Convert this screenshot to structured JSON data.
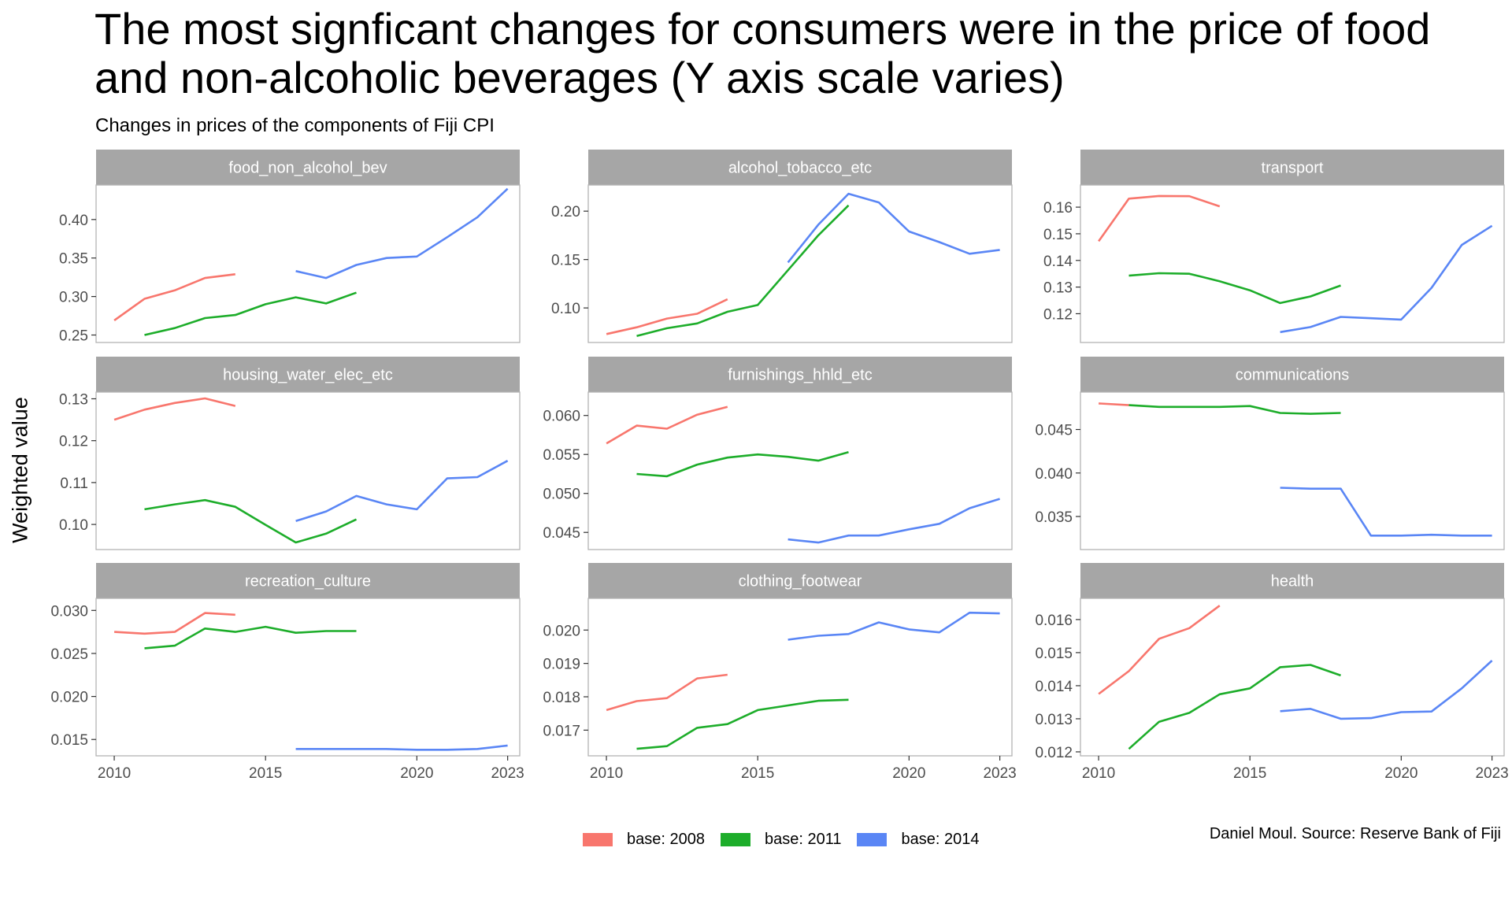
{
  "title": "The most signficant changes for consumers were in the price of food and non-alcoholic beverages (Y axis scale varies)",
  "subtitle": "Changes in prices of the components of Fiji CPI",
  "caption": "Daniel Moul. Source: Reserve Bank of Fiji",
  "colors": {
    "strip": "#a6a6a6",
    "panel_border": "#b3b3b3",
    "tick_text": "#4d4d4d"
  },
  "chart_data": {
    "type": "line",
    "ylabel": "Weighted value",
    "xlabel": "",
    "xlim": [
      2009.4,
      2023.4
    ],
    "x_ticks": [
      "2010",
      "2015",
      "2020",
      "2023"
    ],
    "grid": false,
    "legend_position": "bottom",
    "legend": [
      {
        "label": "base: 2008",
        "color": "#f8766d"
      },
      {
        "label": "base: 2011",
        "color": "#1dad2a"
      },
      {
        "label": "base: 2014",
        "color": "#5a86f5"
      }
    ],
    "panels": [
      {
        "name": "food_non_alcohol_bev",
        "ylim": [
          0.2403,
          0.4448
        ],
        "y_ticks": [
          "0.25",
          "0.30",
          "0.35",
          "0.40"
        ],
        "series": [
          {
            "name": "base: 2008",
            "x": [
              2010,
              2011,
              2012,
              2013,
              2014
            ],
            "y": [
              0.269,
              0.297,
              0.308,
              0.324,
              0.329
            ]
          },
          {
            "name": "base: 2011",
            "x": [
              2011,
              2012,
              2013,
              2014,
              2015,
              2016,
              2017,
              2018
            ],
            "y": [
              0.25,
              0.259,
              0.272,
              0.276,
              0.29,
              0.299,
              0.291,
              0.305
            ]
          },
          {
            "name": "base: 2014",
            "x": [
              2016,
              2017,
              2018,
              2019,
              2020,
              2021,
              2022,
              2023
            ],
            "y": [
              0.333,
              0.324,
              0.341,
              0.35,
              0.352,
              0.377,
              0.403,
              0.44
            ]
          }
        ]
      },
      {
        "name": "alcohol_tobacco_etc",
        "ylim": [
          0.0643,
          0.227
        ],
        "y_ticks": [
          "0.10",
          "0.15",
          "0.20"
        ],
        "series": [
          {
            "name": "base: 2008",
            "x": [
              2010,
              2011,
              2012,
              2013,
              2014
            ],
            "y": [
              0.073,
              0.08,
              0.089,
              0.094,
              0.109
            ]
          },
          {
            "name": "base: 2011",
            "x": [
              2011,
              2012,
              2013,
              2014,
              2015,
              2016,
              2017,
              2018
            ],
            "y": [
              0.071,
              0.079,
              0.084,
              0.096,
              0.103,
              0.139,
              0.175,
              0.206
            ]
          },
          {
            "name": "base: 2014",
            "x": [
              2016,
              2017,
              2018,
              2019,
              2020,
              2021,
              2022,
              2023
            ],
            "y": [
              0.147,
              0.186,
              0.218,
              0.209,
              0.179,
              0.168,
              0.156,
              0.16
            ]
          }
        ]
      },
      {
        "name": "transport",
        "ylim": [
          0.1092,
          0.1683
        ],
        "y_ticks": [
          "0.12",
          "0.13",
          "0.14",
          "0.15",
          "0.16"
        ],
        "series": [
          {
            "name": "base: 2008",
            "x": [
              2010,
              2011,
              2012,
              2013,
              2014
            ],
            "y": [
              0.1472,
              0.1632,
              0.1642,
              0.1641,
              0.1603
            ]
          },
          {
            "name": "base: 2011",
            "x": [
              2011,
              2012,
              2013,
              2014,
              2015,
              2016,
              2017,
              2018
            ],
            "y": [
              0.1343,
              0.1352,
              0.135,
              0.1322,
              0.1288,
              0.124,
              0.1265,
              0.1306
            ]
          },
          {
            "name": "base: 2014",
            "x": [
              2016,
              2017,
              2018,
              2019,
              2020,
              2021,
              2022,
              2023
            ],
            "y": [
              0.1131,
              0.115,
              0.1188,
              0.1183,
              0.1178,
              0.1297,
              0.1458,
              0.153
            ]
          }
        ]
      },
      {
        "name": "housing_water_elec_etc",
        "ylim": [
          0.094,
          0.1316
        ],
        "y_ticks": [
          "0.10",
          "0.11",
          "0.12",
          "0.13"
        ],
        "series": [
          {
            "name": "base: 2008",
            "x": [
              2010,
              2011,
              2012,
              2013,
              2014
            ],
            "y": [
              0.125,
              0.1274,
              0.129,
              0.1301,
              0.1283
            ]
          },
          {
            "name": "base: 2011",
            "x": [
              2011,
              2012,
              2013,
              2014,
              2015,
              2016,
              2017,
              2018
            ],
            "y": [
              0.1036,
              0.1048,
              0.1058,
              0.1042,
              0.0999,
              0.0957,
              0.0978,
              0.1012
            ]
          },
          {
            "name": "base: 2014",
            "x": [
              2016,
              2017,
              2018,
              2019,
              2020,
              2021,
              2022,
              2023
            ],
            "y": [
              0.1008,
              0.1031,
              0.1068,
              0.1048,
              0.1036,
              0.111,
              0.1113,
              0.1152
            ]
          }
        ]
      },
      {
        "name": "furnishings_hhld_etc",
        "ylim": [
          0.0428,
          0.063
        ],
        "y_ticks": [
          "0.045",
          "0.050",
          "0.055",
          "0.060"
        ],
        "series": [
          {
            "name": "base: 2008",
            "x": [
              2010,
              2011,
              2012,
              2013,
              2014
            ],
            "y": [
              0.0564,
              0.0587,
              0.0583,
              0.0601,
              0.0611
            ]
          },
          {
            "name": "base: 2011",
            "x": [
              2011,
              2012,
              2013,
              2014,
              2015,
              2016,
              2017,
              2018
            ],
            "y": [
              0.0525,
              0.0522,
              0.0537,
              0.0546,
              0.055,
              0.0547,
              0.0542,
              0.0553
            ]
          },
          {
            "name": "base: 2014",
            "x": [
              2016,
              2017,
              2018,
              2019,
              2020,
              2021,
              2022,
              2023
            ],
            "y": [
              0.0441,
              0.0437,
              0.0446,
              0.0446,
              0.0454,
              0.0461,
              0.0481,
              0.0493
            ]
          }
        ]
      },
      {
        "name": "communications",
        "ylim": [
          0.0312,
          0.0493
        ],
        "y_ticks": [
          "0.035",
          "0.040",
          "0.045"
        ],
        "series": [
          {
            "name": "base: 2008",
            "x": [
              2010,
              2011
            ],
            "y": [
              0.048,
              0.0478
            ]
          },
          {
            "name": "base: 2011",
            "x": [
              2011,
              2012,
              2013,
              2014,
              2015,
              2016,
              2017,
              2018
            ],
            "y": [
              0.0478,
              0.0476,
              0.0476,
              0.0476,
              0.0477,
              0.0469,
              0.0468,
              0.0469
            ]
          },
          {
            "name": "base: 2014",
            "x": [
              2016,
              2017,
              2018,
              2019,
              2020,
              2021,
              2022,
              2023
            ],
            "y": [
              0.0383,
              0.0382,
              0.0382,
              0.0328,
              0.0328,
              0.0329,
              0.0328,
              0.0328
            ]
          }
        ]
      },
      {
        "name": "recreation_culture",
        "ylim": [
          0.0131,
          0.0314
        ],
        "y_ticks": [
          "0.015",
          "0.020",
          "0.025",
          "0.030"
        ],
        "series": [
          {
            "name": "base: 2008",
            "x": [
              2010,
              2011,
              2012,
              2013,
              2014
            ],
            "y": [
              0.0275,
              0.0273,
              0.0275,
              0.0297,
              0.0295
            ]
          },
          {
            "name": "base: 2011",
            "x": [
              2011,
              2012,
              2013,
              2014,
              2015,
              2016,
              2017,
              2018
            ],
            "y": [
              0.0256,
              0.0259,
              0.0279,
              0.0275,
              0.0281,
              0.0274,
              0.0276,
              0.0276
            ]
          },
          {
            "name": "base: 2014",
            "x": [
              2016,
              2017,
              2018,
              2019,
              2020,
              2021,
              2022,
              2023
            ],
            "y": [
              0.0139,
              0.0139,
              0.0139,
              0.0139,
              0.0138,
              0.0138,
              0.0139,
              0.0143
            ]
          }
        ]
      },
      {
        "name": "clothing_footwear",
        "ylim": [
          0.01623,
          0.02095
        ],
        "y_ticks": [
          "0.017",
          "0.018",
          "0.019",
          "0.020"
        ],
        "series": [
          {
            "name": "base: 2008",
            "x": [
              2010,
              2011,
              2012,
              2013,
              2014
            ],
            "y": [
              0.0176,
              0.01787,
              0.01796,
              0.01855,
              0.01866
            ]
          },
          {
            "name": "base: 2011",
            "x": [
              2011,
              2012,
              2013,
              2014,
              2015,
              2016,
              2017,
              2018
            ],
            "y": [
              0.01644,
              0.01652,
              0.01707,
              0.01718,
              0.0176,
              0.01774,
              0.01788,
              0.01791
            ]
          },
          {
            "name": "base: 2014",
            "x": [
              2016,
              2017,
              2018,
              2019,
              2020,
              2021,
              2022,
              2023
            ],
            "y": [
              0.01971,
              0.01983,
              0.01988,
              0.02023,
              0.02002,
              0.01993,
              0.02052,
              0.0205
            ]
          }
        ]
      },
      {
        "name": "health",
        "ylim": [
          0.01188,
          0.01664
        ],
        "y_ticks": [
          "0.012",
          "0.013",
          "0.014",
          "0.015",
          "0.016"
        ],
        "series": [
          {
            "name": "base: 2008",
            "x": [
              2010,
              2011,
              2012,
              2013,
              2014
            ],
            "y": [
              0.01375,
              0.01444,
              0.01542,
              0.01574,
              0.01642
            ]
          },
          {
            "name": "base: 2011",
            "x": [
              2011,
              2012,
              2013,
              2014,
              2015,
              2016,
              2017,
              2018
            ],
            "y": [
              0.01209,
              0.01291,
              0.01318,
              0.01374,
              0.01392,
              0.01456,
              0.01463,
              0.01431
            ]
          },
          {
            "name": "base: 2014",
            "x": [
              2016,
              2017,
              2018,
              2019,
              2020,
              2021,
              2022,
              2023
            ],
            "y": [
              0.01323,
              0.0133,
              0.013,
              0.01302,
              0.0132,
              0.01322,
              0.01392,
              0.01476
            ]
          }
        ]
      }
    ]
  }
}
